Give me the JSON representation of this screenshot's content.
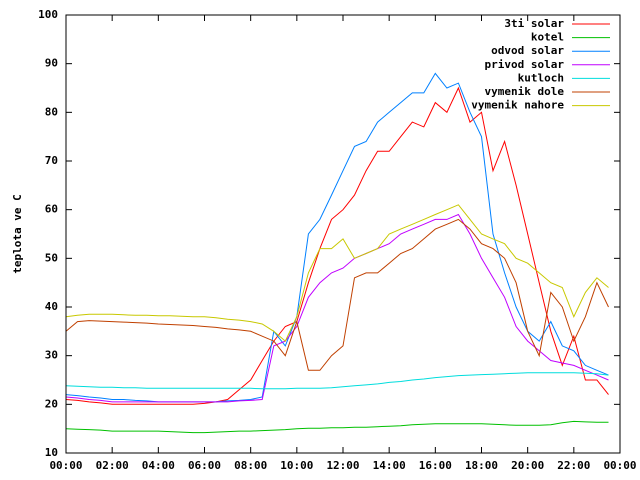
{
  "chart_data": {
    "type": "line",
    "ylabel": "teplota ve C",
    "x": [
      0,
      0.5,
      1,
      1.5,
      2,
      2.5,
      3,
      3.5,
      4,
      4.5,
      5,
      5.5,
      6,
      6.5,
      7,
      7.5,
      8,
      8.5,
      9,
      9.5,
      10,
      10.5,
      11,
      11.5,
      12,
      12.5,
      13,
      13.5,
      14,
      14.5,
      15,
      15.5,
      16,
      16.5,
      17,
      17.5,
      18,
      18.5,
      19,
      19.5,
      20,
      20.5,
      21,
      21.5,
      22,
      22.5,
      23,
      23.5
    ],
    "xlim": [
      0,
      24
    ],
    "xticks": [
      {
        "value": 0,
        "label": "00:00"
      },
      {
        "value": 2,
        "label": "02:00"
      },
      {
        "value": 4,
        "label": "04:00"
      },
      {
        "value": 6,
        "label": "06:00"
      },
      {
        "value": 8,
        "label": "08:00"
      },
      {
        "value": 10,
        "label": "10:00"
      },
      {
        "value": 12,
        "label": "12:00"
      },
      {
        "value": 14,
        "label": "14:00"
      },
      {
        "value": 16,
        "label": "16:00"
      },
      {
        "value": 18,
        "label": "18:00"
      },
      {
        "value": 20,
        "label": "20:00"
      },
      {
        "value": 22,
        "label": "22:00"
      },
      {
        "value": 24,
        "label": "00:00"
      }
    ],
    "ylim": [
      10,
      100
    ],
    "yticks": [
      10,
      20,
      30,
      40,
      50,
      60,
      70,
      80,
      90,
      100
    ],
    "legend": "top-right",
    "series": [
      {
        "name": "3ti solar",
        "color": "#ff0000",
        "values": [
          21,
          20.8,
          20.5,
          20.3,
          20,
          20,
          20,
          20,
          20,
          20,
          20,
          20,
          20.2,
          20.5,
          21,
          23,
          25,
          29,
          33,
          36,
          37,
          45,
          52,
          58,
          60,
          63,
          68,
          72,
          72,
          75,
          78,
          77,
          82,
          80,
          85,
          78,
          80,
          68,
          74,
          65,
          55,
          45,
          35,
          28,
          34,
          25,
          25,
          22
        ]
      },
      {
        "name": "kotel",
        "color": "#00c000",
        "values": [
          15,
          14.9,
          14.8,
          14.7,
          14.5,
          14.5,
          14.5,
          14.5,
          14.5,
          14.4,
          14.3,
          14.2,
          14.2,
          14.3,
          14.4,
          14.5,
          14.5,
          14.6,
          14.7,
          14.8,
          15,
          15.1,
          15.1,
          15.2,
          15.2,
          15.3,
          15.3,
          15.4,
          15.5,
          15.6,
          15.8,
          15.9,
          16,
          16,
          16,
          16,
          16,
          15.9,
          15.8,
          15.7,
          15.7,
          15.7,
          15.8,
          16.2,
          16.5,
          16.4,
          16.3,
          16.3
        ]
      },
      {
        "name": "odvod solar",
        "color": "#0080ff",
        "values": [
          22,
          21.8,
          21.5,
          21.3,
          21,
          21,
          20.8,
          20.7,
          20.5,
          20.5,
          20.5,
          20.5,
          20.5,
          20.5,
          20.7,
          20.8,
          21,
          21.5,
          35,
          32,
          38,
          55,
          58,
          63,
          68,
          73,
          74,
          78,
          80,
          82,
          84,
          84,
          88,
          85,
          86,
          80,
          75,
          55,
          47,
          40,
          35,
          33,
          37,
          32,
          31,
          28,
          27,
          26
        ]
      },
      {
        "name": "privod solar",
        "color": "#c000ff",
        "values": [
          21.5,
          21.3,
          21,
          20.8,
          20.5,
          20.5,
          20.5,
          20.5,
          20.5,
          20.5,
          20.5,
          20.5,
          20.5,
          20.5,
          20.5,
          20.7,
          20.8,
          21,
          32,
          33,
          36,
          42,
          45,
          47,
          48,
          50,
          51,
          52,
          53,
          55,
          56,
          57,
          58,
          58,
          59,
          55,
          50,
          46,
          42,
          36,
          33,
          31,
          29,
          28.5,
          28,
          27,
          26,
          25
        ]
      },
      {
        "name": "kutloch",
        "color": "#00dddd",
        "values": [
          23.8,
          23.7,
          23.6,
          23.5,
          23.5,
          23.4,
          23.4,
          23.3,
          23.3,
          23.3,
          23.3,
          23.3,
          23.3,
          23.3,
          23.3,
          23.3,
          23.3,
          23.2,
          23.2,
          23.2,
          23.3,
          23.3,
          23.3,
          23.4,
          23.6,
          23.8,
          24,
          24.2,
          24.5,
          24.7,
          25,
          25.2,
          25.5,
          25.7,
          25.9,
          26,
          26.1,
          26.2,
          26.3,
          26.4,
          26.5,
          26.5,
          26.5,
          26.5,
          26.5,
          26.4,
          26.3,
          26
        ]
      },
      {
        "name": "vymenik dole",
        "color": "#c04000",
        "values": [
          35,
          37,
          37.2,
          37.1,
          37,
          36.9,
          36.8,
          36.7,
          36.5,
          36.4,
          36.3,
          36.2,
          36,
          35.8,
          35.5,
          35.3,
          35,
          34,
          33,
          30,
          37,
          27,
          27,
          30,
          32,
          46,
          47,
          47,
          49,
          51,
          52,
          54,
          56,
          57,
          58,
          56,
          53,
          52,
          50,
          45,
          35,
          30,
          43,
          40,
          33,
          38,
          45,
          40
        ]
      },
      {
        "name": "vymenik nahore",
        "color": "#c8c800",
        "values": [
          38,
          38.3,
          38.5,
          38.5,
          38.5,
          38.4,
          38.3,
          38.3,
          38.2,
          38.2,
          38.1,
          38,
          38,
          37.8,
          37.5,
          37.3,
          37,
          36.5,
          35,
          33,
          38,
          47,
          52,
          52,
          54,
          50,
          51,
          52,
          55,
          56,
          57,
          58,
          59,
          60,
          61,
          58,
          55,
          54,
          53,
          50,
          49,
          47,
          45,
          44,
          38,
          43,
          46,
          44
        ]
      }
    ]
  }
}
